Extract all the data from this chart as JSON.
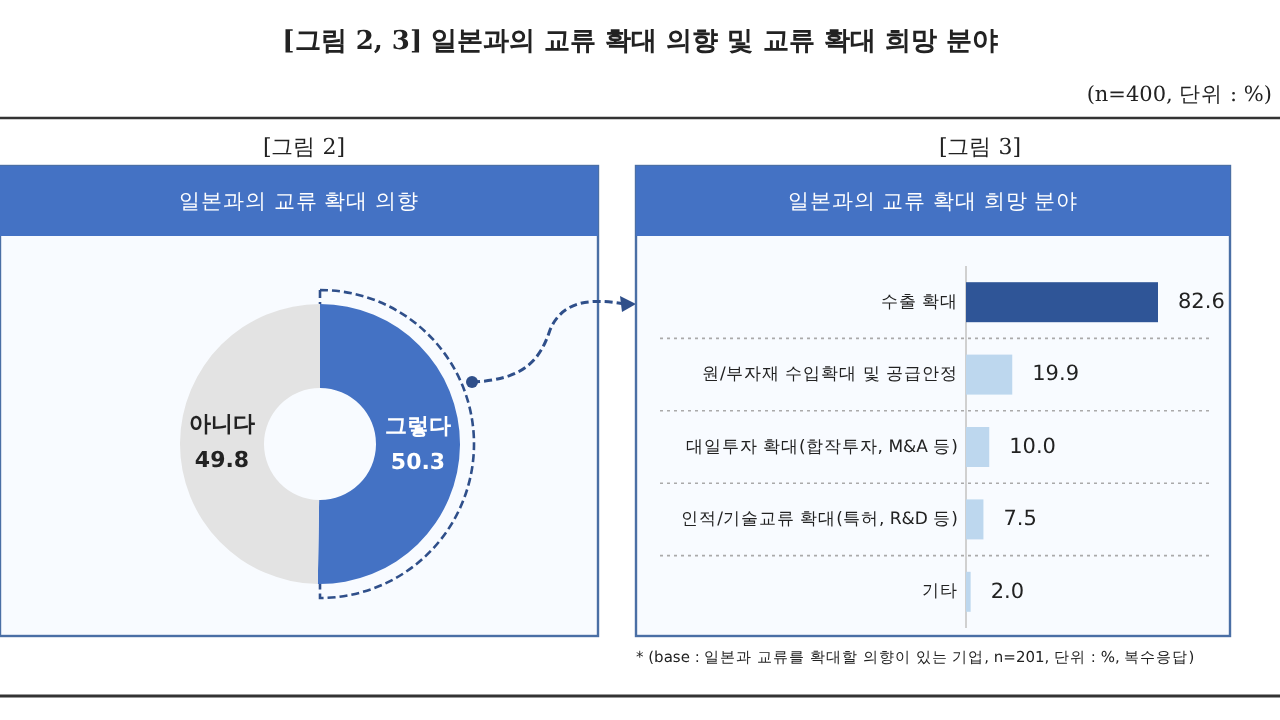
{
  "chart_data": [
    {
      "type": "donut",
      "title": "일본과의 교류 확대 의향",
      "categories": [
        "그렇다",
        "아니다"
      ],
      "values": [
        50.3,
        49.8
      ],
      "colors": [
        "#4472c4",
        "#e3e3e3"
      ],
      "data_labels": true,
      "annotations": [
        "[그림 2, 3] 일본과의 교류 확대 의향 및 교류 확대 희망 분야",
        "(n=400, 단위 : %)",
        "[그림 2]"
      ]
    },
    {
      "type": "bar",
      "orientation": "horizontal",
      "title": "일본과의 교류 확대 희망 분야",
      "categories": [
        "수출 확대",
        "원/부자재 수입확대 및 공급안정",
        "대일투자 확대(합작투자, M&A 등)",
        "인적/기술교류 확대(특허, R&D 등)",
        "기타"
      ],
      "values": [
        82.6,
        19.9,
        10.0,
        7.5,
        2.0
      ],
      "value_labels": [
        "82.6",
        "19.9",
        "10.0",
        "7.5",
        "2.0"
      ],
      "colors": [
        "#2f5597",
        "#bdd7ee",
        "#bdd7ee",
        "#bdd7ee",
        "#bdd7ee"
      ],
      "grid": "y",
      "annotations": [
        "[그림 3]",
        "* (base : 일본과 교류를 확대할 의향이 있는 기업, n=201, 단위 : %, 복수응답)"
      ]
    }
  ]
}
